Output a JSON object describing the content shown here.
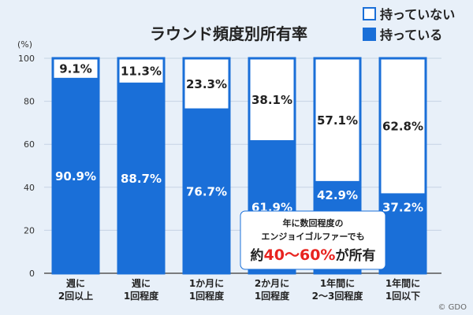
{
  "chart_data": {
    "type": "bar",
    "stacked": true,
    "title": "ラウンド頻度別所有率",
    "unit": "(%)",
    "ylim": [
      0,
      100
    ],
    "yticks": [
      0,
      20,
      40,
      60,
      80,
      100
    ],
    "categories": [
      [
        "週に",
        "2回以上"
      ],
      [
        "週に",
        "1回程度"
      ],
      [
        "1か月に",
        "1回程度"
      ],
      [
        "2か月に",
        "1回程度"
      ],
      [
        "1年間に",
        "2〜3回程度"
      ],
      [
        "1年間に",
        "1回以下"
      ]
    ],
    "series": [
      {
        "name": "持っている",
        "color": "#1a6fd8",
        "values": [
          90.9,
          88.7,
          76.7,
          61.9,
          42.9,
          37.2
        ],
        "labels": [
          "90.9%",
          "88.7%",
          "76.7%",
          "61.9%",
          "42.9%",
          "37.2%"
        ]
      },
      {
        "name": "持っていない",
        "color": "#ffffff",
        "values": [
          9.1,
          11.3,
          23.3,
          38.1,
          57.1,
          62.8
        ],
        "labels": [
          "9.1%",
          "11.3%",
          "23.3%",
          "38.1%",
          "57.1%",
          "62.8%"
        ]
      }
    ],
    "legend": {
      "position": "top-right",
      "items": [
        "持っていない",
        "持っている"
      ]
    },
    "grid": true,
    "annotation": {
      "lines": [
        "年に数回程度の",
        "エンジョイゴルファーでも"
      ],
      "last_prefix": "約",
      "last_highlight": "40〜60%",
      "last_suffix": "が所有"
    }
  },
  "copyright": "© GDO",
  "colors": {
    "frame": "#1a6fd8",
    "highlight": "#e8231f"
  }
}
